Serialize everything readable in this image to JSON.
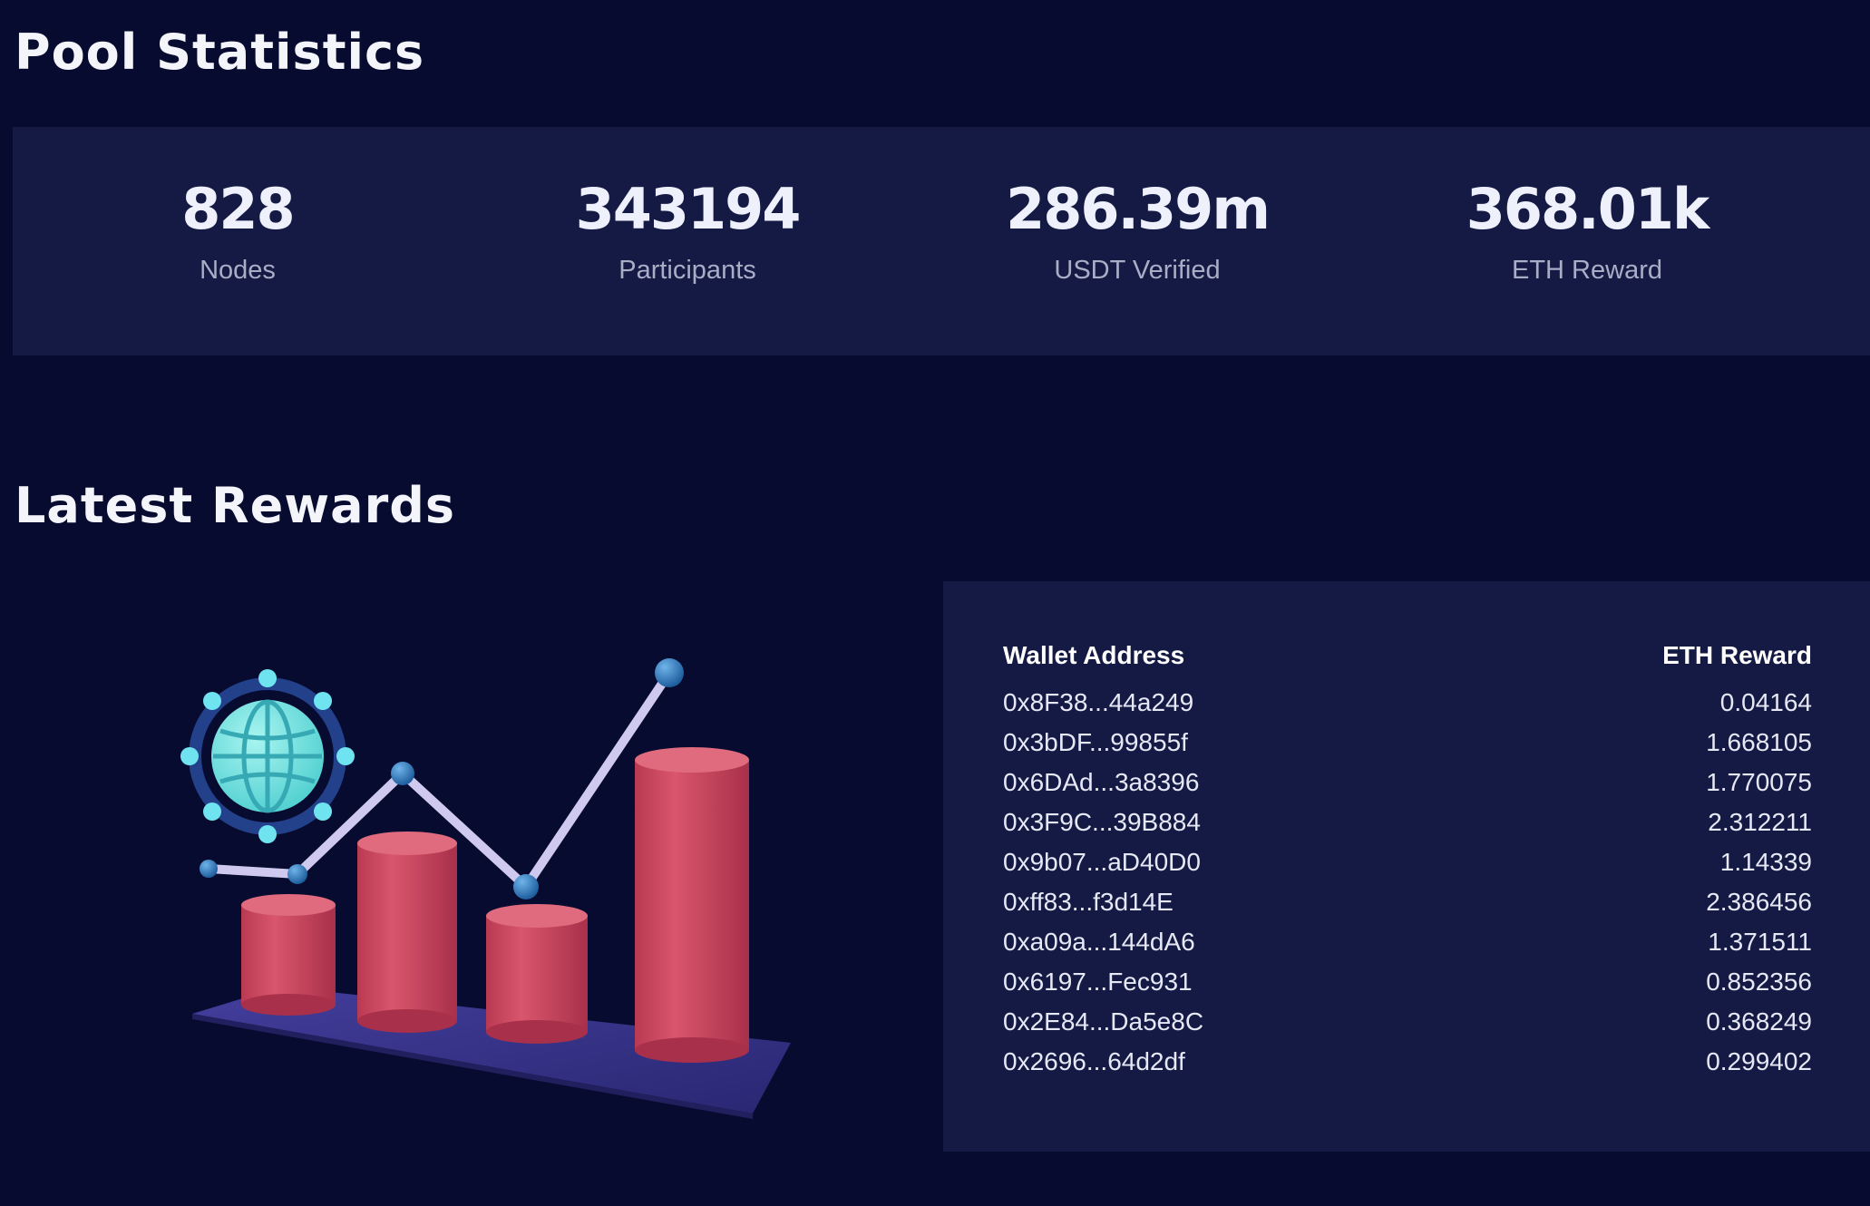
{
  "pool_statistics": {
    "title": "Pool Statistics",
    "stats": [
      {
        "value": "828",
        "label": "Nodes"
      },
      {
        "value": "343194",
        "label": "Participants"
      },
      {
        "value": "286.39m",
        "label": "USDT Verified"
      },
      {
        "value": "368.01k",
        "label": "ETH Reward"
      }
    ]
  },
  "latest_rewards": {
    "title": "Latest Rewards",
    "columns": [
      "Wallet Address",
      "ETH Reward"
    ],
    "rows": [
      {
        "wallet": "0x8F38...44a249",
        "reward": "0.04164"
      },
      {
        "wallet": "0x3bDF...99855f",
        "reward": "1.668105"
      },
      {
        "wallet": "0x6DAd...3a8396",
        "reward": "1.770075"
      },
      {
        "wallet": "0x3F9C...39B884",
        "reward": "2.312211"
      },
      {
        "wallet": "0x9b07...aD40D0",
        "reward": "1.14339"
      },
      {
        "wallet": "0xff83...f3d14E",
        "reward": "2.386456"
      },
      {
        "wallet": "0xa09a...144dA6",
        "reward": "1.371511"
      },
      {
        "wallet": "0x6197...Fec931",
        "reward": "0.852356"
      },
      {
        "wallet": "0x2E84...Da5e8C",
        "reward": "0.368249"
      },
      {
        "wallet": "0x2696...64d2df",
        "reward": "0.299402"
      }
    ]
  },
  "colors": {
    "background": "#070b2f",
    "panel": "#141a44",
    "bar": "#d0485e",
    "line": "#c9c3ee",
    "node": "#2f7fc0",
    "globe": "#6fe3e0"
  },
  "illustration": {
    "icon": "growth-chart-globe-illustration"
  }
}
